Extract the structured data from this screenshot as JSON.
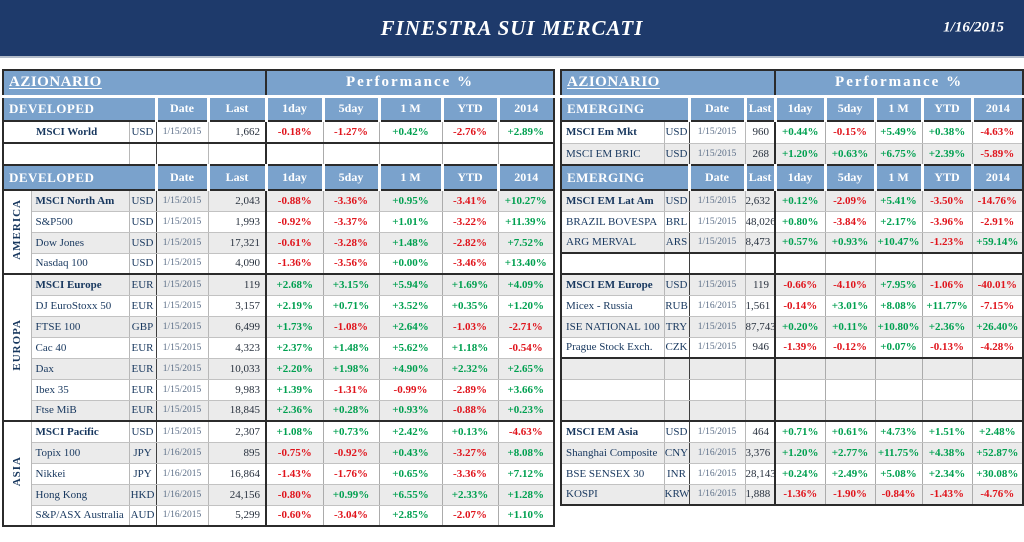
{
  "banner": {
    "title": "FINESTRA SUI MERCATI",
    "date": "1/16/2015"
  },
  "section_header": "AZIONARIO",
  "performance_header": "Performance %",
  "columns": [
    "Date",
    "Last",
    "1day",
    "5day",
    "1 M",
    "YTD",
    "2014"
  ],
  "colors": {
    "banner": "#1e3a6b",
    "header_blue": "#7aa2cc",
    "positive": "#00a050",
    "negative": "#e0141c",
    "stripe": "#ebebeb",
    "name_ink": "#17375e",
    "date_ink": "#5b6e87",
    "value_ink": "#29323f"
  },
  "tables": [
    {
      "id": "developed",
      "top_block": {
        "header": "DEVELOPED",
        "empty_rows": 1,
        "rows": [
          {
            "name": "MSCI World",
            "bold": true,
            "ccy": "USD",
            "date": "1/15/2015",
            "last": "1,662",
            "perf": [
              "-0.18%",
              "-1.27%",
              "+0.42%",
              "-2.76%",
              "+2.89%"
            ],
            "shade": false
          }
        ]
      },
      "main_block": {
        "header": "DEVELOPED",
        "groups": [
          {
            "region": "AMERICA",
            "rows": [
              {
                "name": "MSCI North Am",
                "bold": true,
                "ccy": "USD",
                "date": "1/15/2015",
                "last": "2,043",
                "perf": [
                  "-0.88%",
                  "-3.36%",
                  "+0.95%",
                  "-3.41%",
                  "+10.27%"
                ],
                "shade": true
              },
              {
                "name": "S&P500",
                "ccy": "USD",
                "date": "1/15/2015",
                "last": "1,993",
                "perf": [
                  "-0.92%",
                  "-3.37%",
                  "+1.01%",
                  "-3.22%",
                  "+11.39%"
                ],
                "shade": false
              },
              {
                "name": "Dow Jones",
                "ccy": "USD",
                "date": "1/15/2015",
                "last": "17,321",
                "perf": [
                  "-0.61%",
                  "-3.28%",
                  "+1.48%",
                  "-2.82%",
                  "+7.52%"
                ],
                "shade": true
              },
              {
                "name": "Nasdaq 100",
                "ccy": "USD",
                "date": "1/15/2015",
                "last": "4,090",
                "perf": [
                  "-1.36%",
                  "-3.56%",
                  "+0.00%",
                  "-3.46%",
                  "+13.40%"
                ],
                "shade": false
              }
            ]
          },
          {
            "region": "EUROPA",
            "rows": [
              {
                "name": "MSCI Europe",
                "bold": true,
                "ccy": "EUR",
                "date": "1/15/2015",
                "last": "119",
                "perf": [
                  "+2.68%",
                  "+3.15%",
                  "+5.94%",
                  "+1.69%",
                  "+4.09%"
                ],
                "shade": true
              },
              {
                "name": "DJ EuroStoxx 50",
                "ccy": "EUR",
                "date": "1/15/2015",
                "last": "3,157",
                "perf": [
                  "+2.19%",
                  "+0.71%",
                  "+3.52%",
                  "+0.35%",
                  "+1.20%"
                ],
                "shade": false
              },
              {
                "name": "FTSE 100",
                "ccy": "GBP",
                "date": "1/15/2015",
                "last": "6,499",
                "perf": [
                  "+1.73%",
                  "-1.08%",
                  "+2.64%",
                  "-1.03%",
                  "-2.71%"
                ],
                "shade": true
              },
              {
                "name": "Cac 40",
                "ccy": "EUR",
                "date": "1/15/2015",
                "last": "4,323",
                "perf": [
                  "+2.37%",
                  "+1.48%",
                  "+5.62%",
                  "+1.18%",
                  "-0.54%"
                ],
                "shade": false
              },
              {
                "name": "Dax",
                "ccy": "EUR",
                "date": "1/15/2015",
                "last": "10,033",
                "perf": [
                  "+2.20%",
                  "+1.98%",
                  "+4.90%",
                  "+2.32%",
                  "+2.65%"
                ],
                "shade": true
              },
              {
                "name": "Ibex 35",
                "ccy": "EUR",
                "date": "1/15/2015",
                "last": "9,983",
                "perf": [
                  "+1.39%",
                  "-1.31%",
                  "-0.99%",
                  "-2.89%",
                  "+3.66%"
                ],
                "shade": false
              },
              {
                "name": "Ftse MiB",
                "ccy": "EUR",
                "date": "1/15/2015",
                "last": "18,845",
                "perf": [
                  "+2.36%",
                  "+0.28%",
                  "+0.93%",
                  "-0.88%",
                  "+0.23%"
                ],
                "shade": true
              }
            ]
          },
          {
            "region": "ASIA",
            "rows": [
              {
                "name": "MSCI Pacific",
                "bold": true,
                "ccy": "USD",
                "date": "1/15/2015",
                "last": "2,307",
                "perf": [
                  "+1.08%",
                  "+0.73%",
                  "+2.42%",
                  "+0.13%",
                  "-4.63%"
                ],
                "shade": false
              },
              {
                "name": "Topix 100",
                "ccy": "JPY",
                "date": "1/16/2015",
                "last": "895",
                "perf": [
                  "-0.75%",
                  "-0.92%",
                  "+0.43%",
                  "-3.27%",
                  "+8.08%"
                ],
                "shade": true
              },
              {
                "name": "Nikkei",
                "ccy": "JPY",
                "date": "1/16/2015",
                "last": "16,864",
                "perf": [
                  "-1.43%",
                  "-1.76%",
                  "+0.65%",
                  "-3.36%",
                  "+7.12%"
                ],
                "shade": false
              },
              {
                "name": "Hong Kong",
                "ccy": "HKD",
                "date": "1/16/2015",
                "last": "24,156",
                "perf": [
                  "-0.80%",
                  "+0.99%",
                  "+6.55%",
                  "+2.33%",
                  "+1.28%"
                ],
                "shade": true
              },
              {
                "name": "S&P/ASX Australia",
                "ccy": "AUD",
                "date": "1/16/2015",
                "last": "5,299",
                "perf": [
                  "-0.60%",
                  "-3.04%",
                  "+2.85%",
                  "-2.07%",
                  "+1.10%"
                ],
                "shade": false
              }
            ]
          }
        ]
      }
    },
    {
      "id": "emerging",
      "top_block": {
        "header": "EMERGING",
        "empty_rows": 0,
        "rows": [
          {
            "name": "MSCI Em Mkt",
            "bold": true,
            "ccy": "USD",
            "date": "1/15/2015",
            "last": "960",
            "perf": [
              "+0.44%",
              "-0.15%",
              "+5.49%",
              "+0.38%",
              "-4.63%"
            ],
            "shade": false
          },
          {
            "name": "MSCI EM BRIC",
            "ccy": "USD",
            "date": "1/15/2015",
            "last": "268",
            "perf": [
              "+1.20%",
              "+0.63%",
              "+6.75%",
              "+2.39%",
              "-5.89%"
            ],
            "shade": true
          }
        ]
      },
      "main_block": {
        "header": "EMERGING",
        "groups": [
          {
            "region": "",
            "rows": [
              {
                "name": "MSCI EM Lat Am",
                "bold": true,
                "ccy": "USD",
                "date": "1/15/2015",
                "last": "2,632",
                "perf": [
                  "+0.12%",
                  "-2.09%",
                  "+5.41%",
                  "-3.50%",
                  "-14.76%"
                ],
                "shade": true
              },
              {
                "name": "BRAZIL BOVESPA",
                "ccy": "BRL",
                "date": "1/15/2015",
                "last": "48,026",
                "perf": [
                  "+0.80%",
                  "-3.84%",
                  "+2.17%",
                  "-3.96%",
                  "-2.91%"
                ],
                "shade": false
              },
              {
                "name": "ARG MERVAL",
                "ccy": "ARS",
                "date": "1/15/2015",
                "last": "8,473",
                "perf": [
                  "+0.57%",
                  "+0.93%",
                  "+10.47%",
                  "-1.23%",
                  "+59.14%"
                ],
                "shade": true
              }
            ]
          },
          {
            "region": "",
            "spacer": true,
            "rows": [
              {
                "empty": true,
                "shade": false
              }
            ]
          },
          {
            "region": "",
            "rows": [
              {
                "name": "MSCI EM Europe",
                "bold": true,
                "ccy": "USD",
                "date": "1/15/2015",
                "last": "119",
                "perf": [
                  "-0.66%",
                  "-4.10%",
                  "+7.95%",
                  "-1.06%",
                  "-40.01%"
                ],
                "shade": true
              },
              {
                "name": "Micex - Russia",
                "ccy": "RUB",
                "date": "1/16/2015",
                "last": "1,561",
                "perf": [
                  "-0.14%",
                  "+3.01%",
                  "+8.08%",
                  "+11.77%",
                  "-7.15%"
                ],
                "shade": false
              },
              {
                "name": "ISE NATIONAL 100",
                "ccy": "TRY",
                "date": "1/15/2015",
                "last": "87,743",
                "perf": [
                  "+0.20%",
                  "+0.11%",
                  "+10.80%",
                  "+2.36%",
                  "+26.40%"
                ],
                "shade": true
              },
              {
                "name": "Prague Stock Exch.",
                "ccy": "CZK",
                "date": "1/15/2015",
                "last": "946",
                "perf": [
                  "-1.39%",
                  "-0.12%",
                  "+0.07%",
                  "-0.13%",
                  "-4.28%"
                ],
                "shade": false
              }
            ]
          },
          {
            "region": "",
            "spacer": true,
            "rows": [
              {
                "empty": true,
                "shade": true
              },
              {
                "empty": true,
                "shade": false
              },
              {
                "empty": true,
                "shade": true
              }
            ]
          },
          {
            "region": "",
            "rows": [
              {
                "name": "MSCI EM Asia",
                "bold": true,
                "ccy": "USD",
                "date": "1/15/2015",
                "last": "464",
                "perf": [
                  "+0.71%",
                  "+0.61%",
                  "+4.73%",
                  "+1.51%",
                  "+2.48%"
                ],
                "shade": false
              },
              {
                "name": "Shanghai Composite",
                "ccy": "CNY",
                "date": "1/16/2015",
                "last": "3,376",
                "perf": [
                  "+1.20%",
                  "+2.77%",
                  "+11.75%",
                  "+4.38%",
                  "+52.87%"
                ],
                "shade": true
              },
              {
                "name": "BSE SENSEX 30",
                "ccy": "INR",
                "date": "1/16/2015",
                "last": "28,143",
                "perf": [
                  "+0.24%",
                  "+2.49%",
                  "+5.08%",
                  "+2.34%",
                  "+30.08%"
                ],
                "shade": false
              },
              {
                "name": "KOSPI",
                "ccy": "KRW",
                "date": "1/16/2015",
                "last": "1,888",
                "perf": [
                  "-1.36%",
                  "-1.90%",
                  "-0.84%",
                  "-1.43%",
                  "-4.76%"
                ],
                "shade": true
              }
            ]
          }
        ]
      }
    }
  ]
}
